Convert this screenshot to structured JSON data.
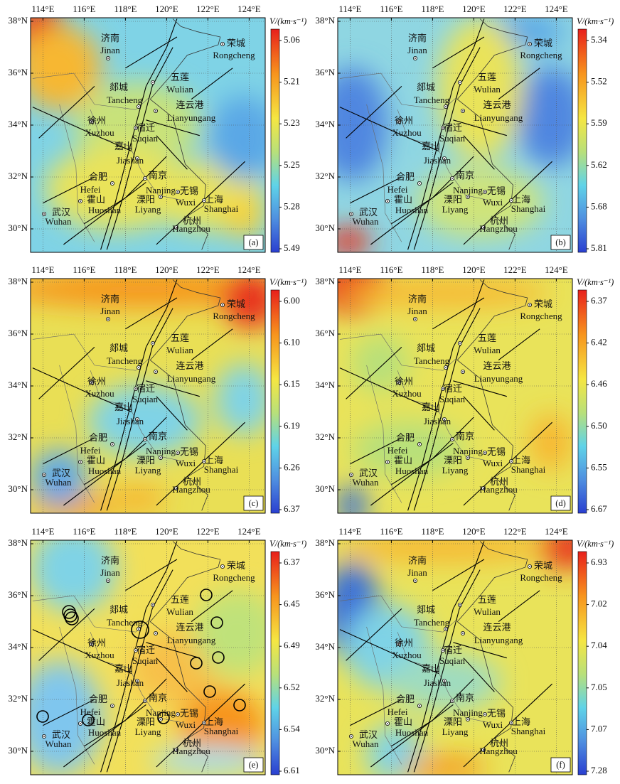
{
  "figure": {
    "lon_ticks": [
      "114°E",
      "116°E",
      "118°E",
      "120°E",
      "122°E",
      "124°E"
    ],
    "lat_ticks": [
      "38°N",
      "36°N",
      "34°N",
      "32°N",
      "30°N"
    ],
    "colorbar_title": "V/(km·s⁻¹)",
    "cities": [
      {
        "cn": "济南",
        "en": "Jinan"
      },
      {
        "cn": "荣城",
        "en": "Rongcheng"
      },
      {
        "cn": "五莲",
        "en": "Wulian"
      },
      {
        "cn": "郯城",
        "en": "Tancheng"
      },
      {
        "cn": "连云港",
        "en": "Lianyungang"
      },
      {
        "cn": "徐州",
        "en": "Xuzhou"
      },
      {
        "cn": "宿迁",
        "en": "Suqian"
      },
      {
        "cn": "嘉山",
        "en": "Jiashan"
      },
      {
        "cn": "合肥",
        "en": "Hefei"
      },
      {
        "cn": "霍山",
        "en": "Huoshan"
      },
      {
        "cn": "南京",
        "en": "Nanjing"
      },
      {
        "cn": "溧阳",
        "en": "Liyang"
      },
      {
        "cn": "无锡",
        "en": "Wuxi"
      },
      {
        "cn": "上海",
        "en": "Shanghai"
      },
      {
        "cn": "杭州",
        "en": "Hangzhou"
      },
      {
        "cn": "武汉",
        "en": "Wuhan"
      }
    ],
    "panels": [
      {
        "label": "(a)",
        "colorbar_ticks": [
          "5.06",
          "5.21",
          "5.23",
          "5.25",
          "5.28",
          "5.49"
        ]
      },
      {
        "label": "(b)",
        "colorbar_ticks": [
          "5.34",
          "5.52",
          "5.59",
          "5.62",
          "5.68",
          "5.81"
        ]
      },
      {
        "label": "(c)",
        "colorbar_ticks": [
          "6.00",
          "6.10",
          "6.15",
          "6.19",
          "6.26",
          "6.37"
        ]
      },
      {
        "label": "(d)",
        "colorbar_ticks": [
          "6.37",
          "6.42",
          "6.46",
          "6.50",
          "6.55",
          "6.67"
        ]
      },
      {
        "label": "(e)",
        "colorbar_ticks": [
          "6.37",
          "6.45",
          "6.49",
          "6.52",
          "6.54",
          "6.61"
        ]
      },
      {
        "label": "(f)",
        "colorbar_ticks": [
          "6.93",
          "7.02",
          "7.04",
          "7.05",
          "7.07",
          "7.28"
        ]
      }
    ]
  }
}
